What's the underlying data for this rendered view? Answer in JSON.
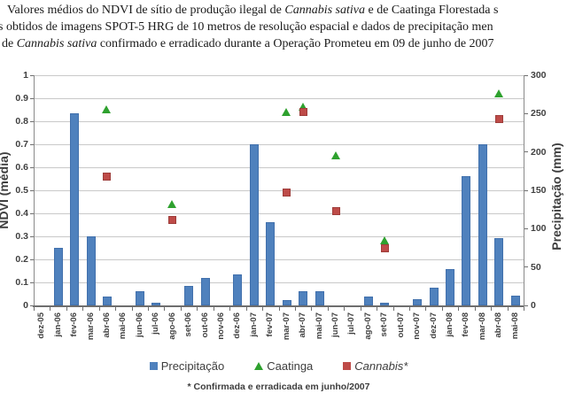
{
  "caption": {
    "lines": [
      {
        "indent": 8,
        "runs": [
          {
            "text": "Valores médios do NDVI de sítio de produção ilegal de ",
            "italic": false
          },
          {
            "text": "Cannabis sativa",
            "italic": true
          },
          {
            "text": " e de Caatinga Florestada s",
            "italic": false
          }
        ]
      },
      {
        "indent": -2,
        "runs": [
          {
            "text": "s obtidos de imagens SPOT-5 HRG de 10 metros de resolução espacial e dados de precipitação men",
            "italic": false
          }
        ]
      },
      {
        "indent": 2,
        "runs": [
          {
            "text": "de ",
            "italic": false
          },
          {
            "text": "Cannabis sativa",
            "italic": true
          },
          {
            "text": " confirmado e erradicado durante a Operação Prometeu em 09 de junho de 2007",
            "italic": false
          }
        ]
      }
    ]
  },
  "chart_data": {
    "type": "bar",
    "subtype": "bar-plus-scatter-dual-axis",
    "categories": [
      "dez-05",
      "jan-06",
      "fev-06",
      "mar-06",
      "abr-06",
      "mai-06",
      "jun-06",
      "jul-06",
      "ago-06",
      "set-06",
      "out-06",
      "nov-06",
      "dez-06",
      "jan-07",
      "fev-07",
      "mar-07",
      "abr-07",
      "mai-07",
      "jun-07",
      "jul-07",
      "ago-07",
      "set-07",
      "out-07",
      "nov-07",
      "dez-07",
      "jan-08",
      "fev-08",
      "mar-08",
      "abr-08",
      "mai-08"
    ],
    "series": [
      {
        "name": "Precipitação",
        "type": "bar",
        "axis": "right",
        "unit": "mm",
        "color": "#4f81bd",
        "values": [
          0,
          75,
          250,
          90,
          12,
          0,
          19,
          3,
          0,
          25,
          36,
          0,
          40,
          210,
          108,
          7,
          19,
          19,
          0,
          0,
          11,
          4,
          0,
          8,
          23,
          47,
          168,
          210,
          88,
          13
        ]
      },
      {
        "name": "Caatinga",
        "type": "scatter",
        "marker": "triangle",
        "axis": "left",
        "unit": "NDVI",
        "color": "#2ea12e",
        "points": [
          {
            "month": "abr-06",
            "ndvi": 0.85
          },
          {
            "month": "ago-06",
            "ndvi": 0.44
          },
          {
            "month": "mar-07",
            "ndvi": 0.84
          },
          {
            "month": "abr-07",
            "ndvi": 0.86
          },
          {
            "month": "jun-07",
            "ndvi": 0.65
          },
          {
            "month": "set-07",
            "ndvi": 0.28
          },
          {
            "month": "abr-08",
            "ndvi": 0.92
          }
        ]
      },
      {
        "name": "Cannabis*",
        "type": "scatter",
        "marker": "square",
        "axis": "left",
        "unit": "NDVI",
        "color": "#be4b48",
        "points": [
          {
            "month": "abr-06",
            "ndvi": 0.56
          },
          {
            "month": "ago-06",
            "ndvi": 0.37
          },
          {
            "month": "mar-07",
            "ndvi": 0.49
          },
          {
            "month": "abr-07",
            "ndvi": 0.84
          },
          {
            "month": "jun-07",
            "ndvi": 0.41
          },
          {
            "month": "set-07",
            "ndvi": 0.25
          },
          {
            "month": "abr-08",
            "ndvi": 0.81
          }
        ]
      }
    ],
    "left_axis": {
      "title": "NDVI (média)",
      "min": 0,
      "max": 1,
      "step": 0.1,
      "tick_labels": [
        "0",
        "0.1",
        "0.2",
        "0.3",
        "0.4",
        "0.5",
        "0.6",
        "0.7",
        "0.8",
        "0.9",
        "1"
      ]
    },
    "right_axis": {
      "title": "Precipitação (mm)",
      "min": 0,
      "max": 300,
      "step": 50,
      "tick_labels": [
        "0",
        "50",
        "100",
        "150",
        "200",
        "250",
        "300"
      ]
    },
    "grid": true,
    "legend_position": "bottom"
  },
  "legend": [
    {
      "label": "Precipitação",
      "marker": "square",
      "color": "#4f81bd",
      "italic": false
    },
    {
      "label": "Caatinga",
      "marker": "triangle",
      "color": "#2ea12e",
      "italic": false
    },
    {
      "label": "Cannabis*",
      "marker": "square",
      "color": "#be4b48",
      "italic": true
    }
  ],
  "footnote": "* Confirmada e erradicada em junho/2007",
  "colors": {
    "bar": "#4f81bd",
    "caatinga": "#2ea12e",
    "cannabis": "#be4b48",
    "grid": "#c9c9c9",
    "axis": "#6e6e6e",
    "tick_text": "#3f3f3f"
  }
}
